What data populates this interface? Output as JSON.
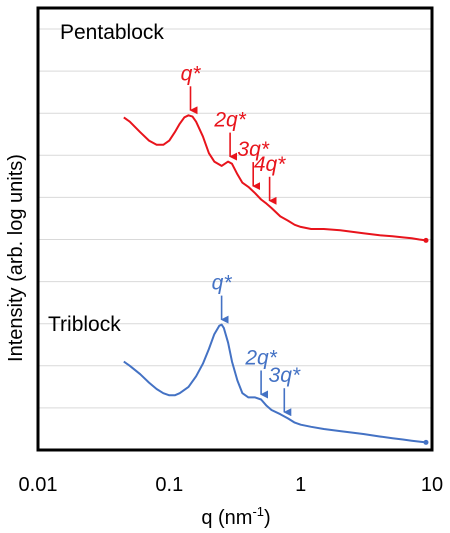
{
  "chart_data": {
    "type": "line",
    "xscale": "log",
    "xlim": [
      0.01,
      10
    ],
    "xticks": [
      {
        "value": 0.01,
        "label": "0.01"
      },
      {
        "value": 0.1,
        "label": "0.1"
      },
      {
        "value": 1,
        "label": "1"
      },
      {
        "value": 10,
        "label": "10"
      }
    ],
    "xlabel": "q (nm",
    "xlabel_sup": "-1",
    "xlabel_end": ")",
    "ylabel": "Intensity (arb. log units)",
    "ylim": [
      0,
      10.5
    ],
    "y_tick_labels": false,
    "grid": "horizontal",
    "series": [
      {
        "name": "Pentablock",
        "color": "#e8141c",
        "x": [
          0.045,
          0.05,
          0.06,
          0.07,
          0.08,
          0.09,
          0.1,
          0.11,
          0.12,
          0.13,
          0.14,
          0.15,
          0.16,
          0.18,
          0.2,
          0.22,
          0.25,
          0.28,
          0.3,
          0.33,
          0.36,
          0.4,
          0.45,
          0.5,
          0.55,
          0.6,
          0.7,
          0.8,
          0.9,
          1.0,
          1.2,
          1.5,
          2.0,
          3.0,
          4.0,
          5.0,
          6.0,
          7.0,
          8.0,
          9.0
        ],
        "y": [
          7.9,
          7.8,
          7.55,
          7.35,
          7.25,
          7.25,
          7.35,
          7.55,
          7.75,
          7.9,
          7.95,
          7.92,
          7.8,
          7.45,
          7.05,
          6.85,
          6.75,
          6.85,
          6.8,
          6.55,
          6.35,
          6.25,
          6.1,
          5.95,
          5.85,
          5.75,
          5.55,
          5.45,
          5.35,
          5.3,
          5.25,
          5.25,
          5.22,
          5.15,
          5.1,
          5.08,
          5.05,
          5.03,
          5.0,
          4.98
        ]
      },
      {
        "name": "Triblock",
        "color": "#4472c4",
        "x": [
          0.045,
          0.05,
          0.06,
          0.07,
          0.08,
          0.09,
          0.1,
          0.11,
          0.12,
          0.14,
          0.16,
          0.18,
          0.2,
          0.22,
          0.24,
          0.25,
          0.26,
          0.28,
          0.3,
          0.33,
          0.36,
          0.4,
          0.45,
          0.5,
          0.55,
          0.6,
          0.7,
          0.8,
          0.9,
          1.0,
          1.2,
          1.5,
          2.0,
          3.0,
          4.0,
          5.0,
          6.0,
          7.0,
          8.0,
          9.0
        ],
        "y": [
          2.1,
          2.0,
          1.8,
          1.6,
          1.45,
          1.35,
          1.3,
          1.3,
          1.35,
          1.5,
          1.75,
          2.05,
          2.4,
          2.75,
          2.95,
          2.98,
          2.9,
          2.55,
          2.1,
          1.65,
          1.35,
          1.25,
          1.25,
          1.2,
          1.05,
          0.95,
          0.85,
          0.75,
          0.65,
          0.6,
          0.55,
          0.5,
          0.45,
          0.38,
          0.32,
          0.28,
          0.25,
          0.22,
          0.2,
          0.18
        ]
      }
    ],
    "annotations": [
      {
        "series": "Pentablock",
        "text": "q*",
        "x": 0.145,
        "y": 7.95
      },
      {
        "series": "Pentablock",
        "text": "2q*",
        "x": 0.29,
        "y": 6.85
      },
      {
        "series": "Pentablock",
        "text": "3q*",
        "x": 0.435,
        "y": 6.15
      },
      {
        "series": "Pentablock",
        "text": "4q*",
        "x": 0.58,
        "y": 5.8
      },
      {
        "series": "Triblock",
        "text": "q*",
        "x": 0.25,
        "y": 2.98
      },
      {
        "series": "Triblock",
        "text": "2q*",
        "x": 0.5,
        "y": 1.2
      },
      {
        "series": "Triblock",
        "text": "3q*",
        "x": 0.75,
        "y": 0.78
      }
    ]
  }
}
